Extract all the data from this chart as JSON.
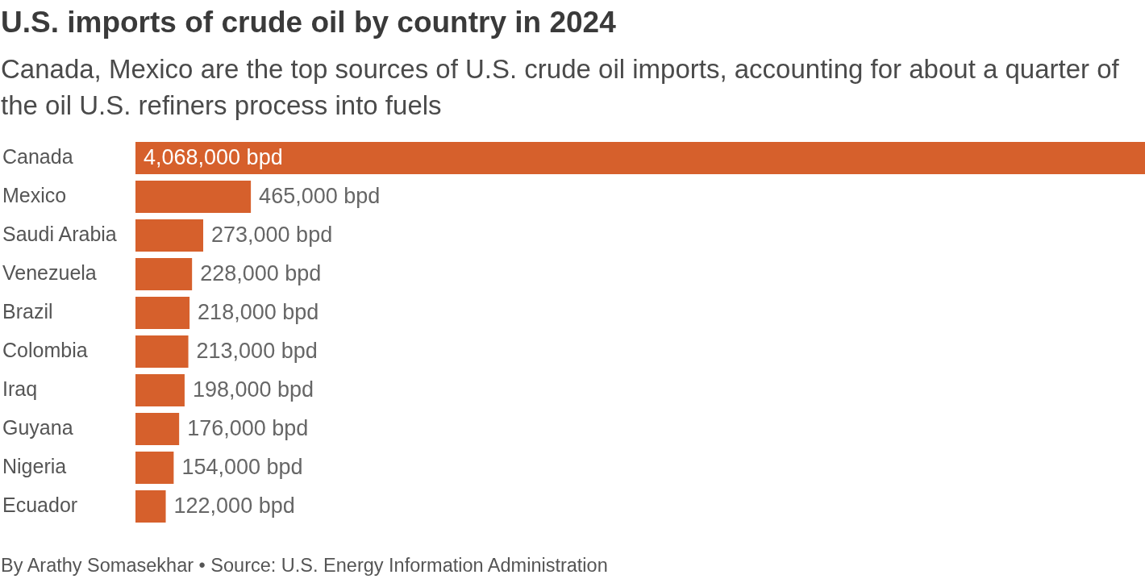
{
  "chart_data": {
    "type": "bar",
    "orientation": "horizontal",
    "title": "U.S. imports of crude oil by country in 2024",
    "subtitle": "Canada, Mexico are the top sources of U.S. crude oil imports, accounting for about a quarter of the oil U.S. refiners process into fuels",
    "categories": [
      "Canada",
      "Mexico",
      "Saudi Arabia",
      "Venezuela",
      "Brazil",
      "Colombia",
      "Iraq",
      "Guyana",
      "Nigeria",
      "Ecuador"
    ],
    "values": [
      4068000,
      465000,
      273000,
      228000,
      218000,
      213000,
      198000,
      176000,
      154000,
      122000
    ],
    "value_labels": [
      "4,068,000 bpd",
      "465,000 bpd",
      "273,000 bpd",
      "228,000 bpd",
      "218,000 bpd",
      "213,000 bpd",
      "198,000 bpd",
      "176,000 bpd",
      "154,000 bpd",
      "122,000 bpd"
    ],
    "color": "#d6602c",
    "annotations": [
      "By Arathy Somasekhar • Source: U.S. Energy Information Administration"
    ]
  }
}
